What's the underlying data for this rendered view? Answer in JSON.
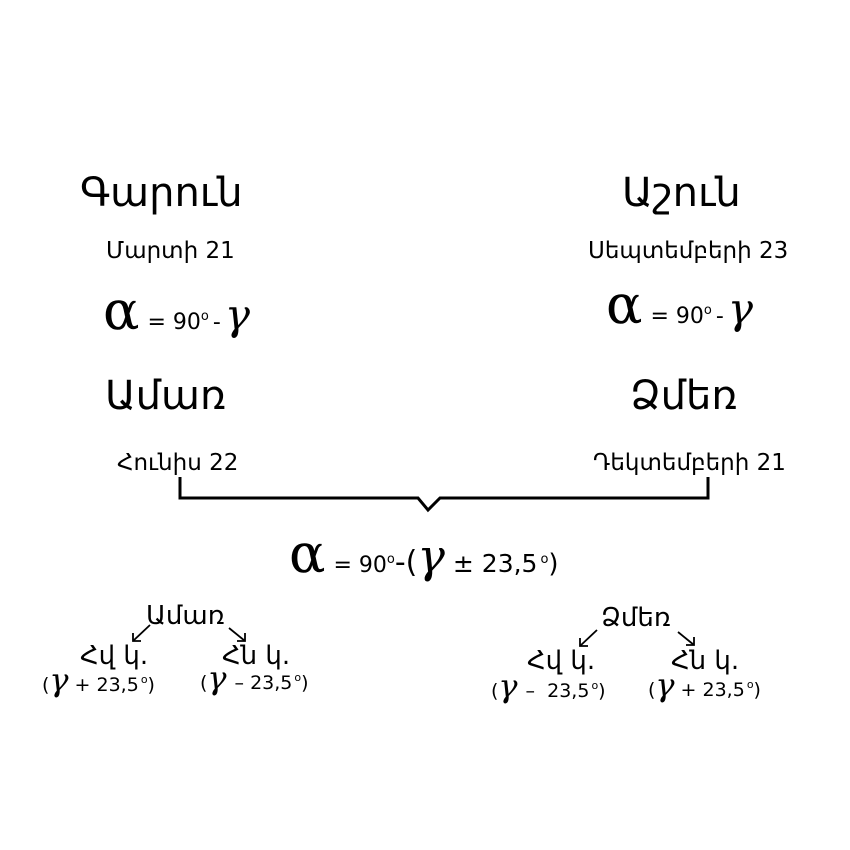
{
  "seasons": {
    "spring": {
      "name": "Գարուն",
      "date": "Մարտի 21"
    },
    "autumn": {
      "name": "Աշուն",
      "date": "Սեպտեմբերի 23"
    },
    "summer": {
      "name": "Ամառ",
      "date": "Հունիս 22"
    },
    "winter": {
      "name": "Ձմեռ",
      "date": "Դեկտեմբերի 21"
    }
  },
  "formula_simple": {
    "alpha": "α",
    "equals_90": "= 90",
    "deg": "o",
    "minus": "-",
    "gamma": "γ"
  },
  "formula_combined": {
    "alpha": "α",
    "equals_90": "= 90",
    "deg": "o",
    "minus_paren": "-(",
    "gamma": "γ",
    "pm": "± 23,5",
    "close": ")"
  },
  "branches": {
    "summer": {
      "season": "Ամառ",
      "north_label": "Հվ կ.",
      "south_label": "Հն կ.",
      "north_sign": "+ 23,5",
      "south_sign": "– 23,5"
    },
    "winter": {
      "season": "Ձմեռ",
      "north_label": "Հվ կ.",
      "south_label": "Հն կ.",
      "north_sign": "–  23,5",
      "south_sign": "+ 23,5"
    }
  },
  "paren_open": "(",
  "paren_close": ")"
}
